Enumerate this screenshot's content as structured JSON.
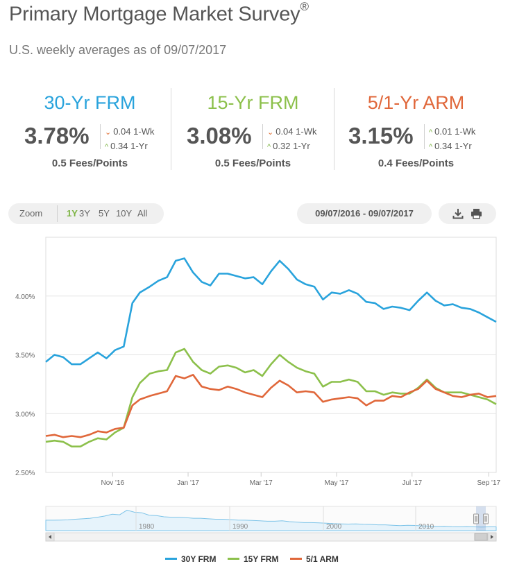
{
  "header": {
    "title": "Primary Mortgage Market Survey",
    "title_mark": "®",
    "subtitle": "U.S. weekly averages as of 09/07/2017"
  },
  "rates": [
    {
      "name": "30-Yr FRM",
      "color": "#29a3dc",
      "value": "3.78%",
      "change_1wk": "0.04 1-Wk",
      "change_1wk_dir": "down",
      "change_1yr": "0.34 1-Yr",
      "change_1yr_dir": "up",
      "fees": "0.5 Fees/Points"
    },
    {
      "name": "15-Yr FRM",
      "color": "#8cc04b",
      "value": "3.08%",
      "change_1wk": "0.04 1-Wk",
      "change_1wk_dir": "down",
      "change_1yr": "0.32 1-Yr",
      "change_1yr_dir": "up",
      "fees": "0.5 Fees/Points"
    },
    {
      "name": "5/1-Yr ARM",
      "color": "#e0673a",
      "value": "3.15%",
      "change_1wk": "0.01 1-Wk",
      "change_1wk_dir": "up",
      "change_1yr": "0.34 1-Yr",
      "change_1yr_dir": "up",
      "fees": "0.4 Fees/Points"
    }
  ],
  "toolbar": {
    "zoom_label": "Zoom",
    "zoom_options": [
      "1Y",
      "3Y",
      "5Y",
      "10Y",
      "All"
    ],
    "zoom_selected": "1Y",
    "date_range": "09/07/2016 - 09/07/2017",
    "download_icon": "download-icon",
    "print_icon": "print-icon"
  },
  "chart_data": {
    "type": "line",
    "x_axis": {
      "type": "date",
      "start": "2016-09-08",
      "end": "2017-09-07",
      "ticks": [
        {
          "label": "Nov '16",
          "date": "2016-11-01"
        },
        {
          "label": "Jan '17",
          "date": "2017-01-01"
        },
        {
          "label": "Mar '17",
          "date": "2017-03-01"
        },
        {
          "label": "May '17",
          "date": "2017-05-01"
        },
        {
          "label": "Jul '17",
          "date": "2017-07-01"
        },
        {
          "label": "Sep '17",
          "date": "2017-09-01"
        }
      ]
    },
    "y_axis": {
      "ylim": [
        2.5,
        4.5
      ],
      "ticks": [
        {
          "label": "2.50%",
          "value": 2.5
        },
        {
          "label": "3.00%",
          "value": 3.0
        },
        {
          "label": "3.50%",
          "value": 3.5
        },
        {
          "label": "4.00%",
          "value": 4.0
        }
      ]
    },
    "grid": true,
    "legend_position": "bottom-center",
    "x": [
      "2016-09-08",
      "2016-09-15",
      "2016-09-22",
      "2016-09-29",
      "2016-10-06",
      "2016-10-13",
      "2016-10-20",
      "2016-10-27",
      "2016-11-03",
      "2016-11-10",
      "2016-11-17",
      "2016-11-23",
      "2016-12-01",
      "2016-12-08",
      "2016-12-15",
      "2016-12-22",
      "2016-12-29",
      "2017-01-05",
      "2017-01-12",
      "2017-01-19",
      "2017-01-26",
      "2017-02-02",
      "2017-02-09",
      "2017-02-16",
      "2017-02-23",
      "2017-03-02",
      "2017-03-09",
      "2017-03-16",
      "2017-03-23",
      "2017-03-30",
      "2017-04-06",
      "2017-04-13",
      "2017-04-20",
      "2017-04-27",
      "2017-05-04",
      "2017-05-11",
      "2017-05-18",
      "2017-05-25",
      "2017-06-01",
      "2017-06-08",
      "2017-06-15",
      "2017-06-22",
      "2017-06-29",
      "2017-07-06",
      "2017-07-13",
      "2017-07-20",
      "2017-07-27",
      "2017-08-03",
      "2017-08-10",
      "2017-08-17",
      "2017-08-24",
      "2017-08-31",
      "2017-09-07"
    ],
    "series": [
      {
        "name": "30Y FRM",
        "color": "#29a3dc",
        "values": [
          3.44,
          3.5,
          3.48,
          3.42,
          3.42,
          3.47,
          3.52,
          3.47,
          3.54,
          3.57,
          3.94,
          4.03,
          4.08,
          4.13,
          4.16,
          4.3,
          4.32,
          4.2,
          4.12,
          4.09,
          4.19,
          4.19,
          4.17,
          4.15,
          4.16,
          4.1,
          4.21,
          4.3,
          4.23,
          4.14,
          4.1,
          4.08,
          3.97,
          4.03,
          4.02,
          4.05,
          4.02,
          3.95,
          3.94,
          3.89,
          3.91,
          3.9,
          3.88,
          3.96,
          4.03,
          3.96,
          3.92,
          3.93,
          3.9,
          3.89,
          3.86,
          3.82,
          3.78
        ]
      },
      {
        "name": "15Y FRM",
        "color": "#8cc04b",
        "values": [
          2.76,
          2.77,
          2.76,
          2.72,
          2.72,
          2.76,
          2.79,
          2.78,
          2.84,
          2.88,
          3.14,
          3.26,
          3.34,
          3.36,
          3.37,
          3.52,
          3.55,
          3.44,
          3.37,
          3.34,
          3.4,
          3.41,
          3.39,
          3.35,
          3.37,
          3.32,
          3.42,
          3.5,
          3.44,
          3.39,
          3.36,
          3.34,
          3.23,
          3.27,
          3.27,
          3.29,
          3.27,
          3.19,
          3.19,
          3.16,
          3.18,
          3.17,
          3.17,
          3.22,
          3.29,
          3.22,
          3.18,
          3.18,
          3.18,
          3.16,
          3.14,
          3.12,
          3.08
        ]
      },
      {
        "name": "5/1 ARM",
        "color": "#e0673a",
        "values": [
          2.81,
          2.82,
          2.8,
          2.81,
          2.8,
          2.82,
          2.85,
          2.84,
          2.87,
          2.88,
          3.07,
          3.12,
          3.15,
          3.17,
          3.19,
          3.32,
          3.3,
          3.33,
          3.23,
          3.21,
          3.2,
          3.23,
          3.21,
          3.18,
          3.16,
          3.14,
          3.22,
          3.28,
          3.24,
          3.18,
          3.19,
          3.18,
          3.1,
          3.12,
          3.13,
          3.14,
          3.13,
          3.07,
          3.11,
          3.11,
          3.15,
          3.14,
          3.18,
          3.21,
          3.28,
          3.21,
          3.18,
          3.15,
          3.14,
          3.16,
          3.17,
          3.14,
          3.15
        ]
      }
    ],
    "navigator": {
      "tick_labels": [
        "1980",
        "1990",
        "2000",
        "2010"
      ]
    }
  }
}
